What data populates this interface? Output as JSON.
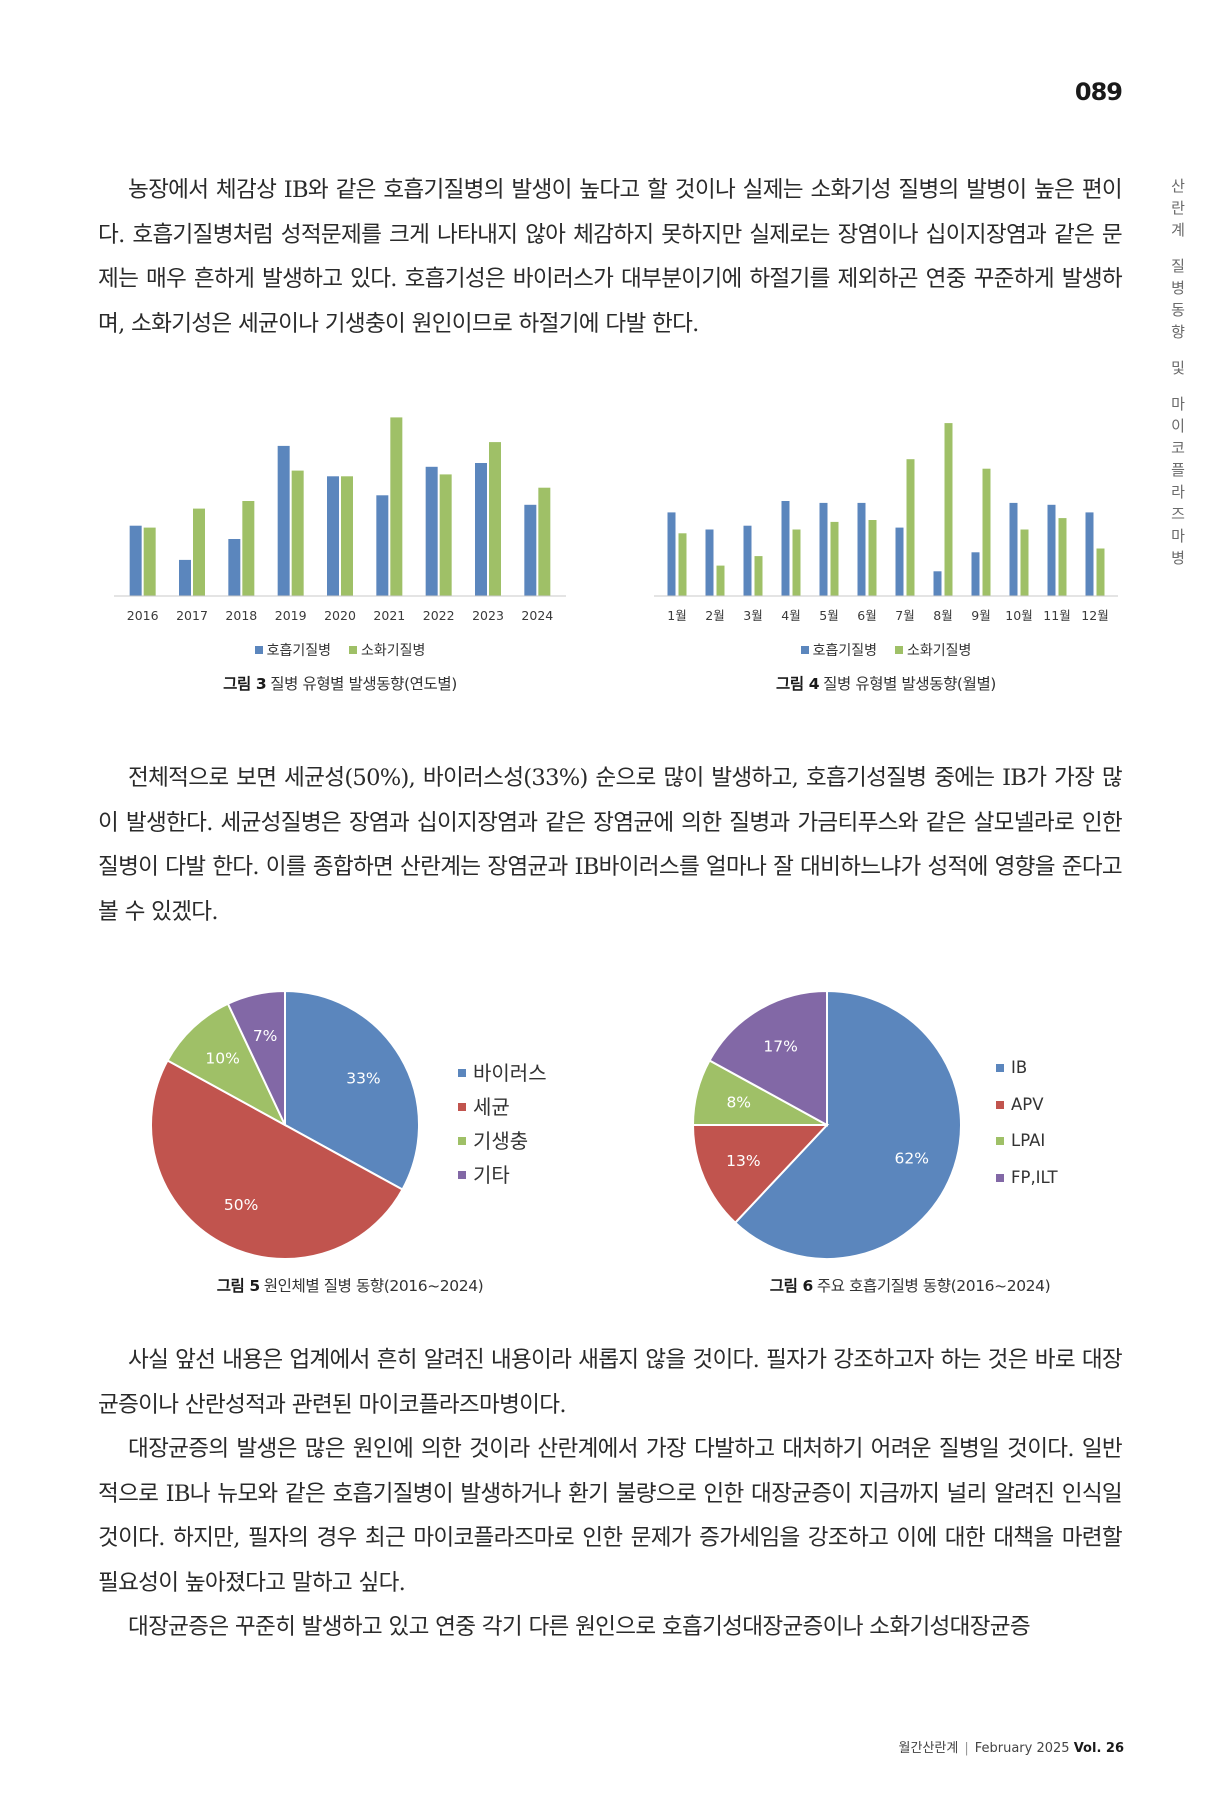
{
  "page_number": "089",
  "side_title": [
    "산",
    "란",
    "계",
    "",
    "질",
    "병",
    "동",
    "향",
    "",
    "및",
    "",
    "마",
    "이",
    "코",
    "플",
    "라",
    "즈",
    "마",
    "병"
  ],
  "paragraphs": {
    "p1": "농장에서 체감상 IB와 같은 호흡기질병의 발생이 높다고 할 것이나 실제는 소화기성 질병의 발병이 높은 편이다. 호흡기질병처럼 성적문제를 크게 나타내지 않아 체감하지 못하지만 실제로는 장염이나 십이지장염과 같은 문제는 매우 흔하게 발생하고 있다. 호흡기성은 바이러스가 대부분이기에 하절기를 제외하곤 연중 꾸준하게 발생하며, 소화기성은 세균이나 기생충이 원인이므로 하절기에 다발 한다.",
    "p2": "전체적으로 보면 세균성(50%), 바이러스성(33%) 순으로 많이 발생하고, 호흡기성질병 중에는 IB가 가장 많이 발생한다. 세균성질병은 장염과 십이지장염과 같은 장염균에 의한 질병과 가금티푸스와 같은 살모넬라로 인한 질병이 다발 한다. 이를 종합하면 산란계는 장염균과 IB바이러스를 얼마나 잘 대비하느냐가 성적에 영향을 준다고 볼 수 있겠다.",
    "p3": "사실 앞선 내용은 업계에서 흔히 알려진 내용이라 새롭지 않을 것이다. 필자가 강조하고자 하는 것은 바로 대장균증이나 산란성적과 관련된 마이코플라즈마병이다.",
    "p4": "대장균증의 발생은 많은 원인에 의한 것이라 산란계에서 가장 다발하고 대처하기 어려운 질병일 것이다. 일반적으로 IB나 뉴모와 같은 호흡기질병이 발생하거나 환기 불량으로 인한 대장균증이 지금까지 널리 알려진 인식일 것이다. 하지만, 필자의 경우 최근 마이코플라즈마로 인한 문제가 증가세임을 강조하고 이에 대한 대책을 마련할 필요성이 높아졌다고 말하고 싶다.",
    "p5": "대장균증은 꾸준히 발생하고 있고 연중 각기 다른 원인으로 호흡기성대장균증이나 소화기성대장균증"
  },
  "captions": {
    "fig3": {
      "num": "그림 3",
      "text": "질병 유형별 발생동향(연도별)"
    },
    "fig4": {
      "num": "그림 4",
      "text": "질병 유형별 발생동향(월별)"
    },
    "fig5": {
      "num": "그림 5",
      "text": "원인체별 질병 동향(2016~2024)"
    },
    "fig6": {
      "num": "그림 6",
      "text": "주요 호흡기질병 동향(2016~2024)"
    }
  },
  "footer": {
    "magazine": "월간산란계",
    "issue": "February 2025",
    "vol": "Vol. 26"
  },
  "colors": {
    "blue": "#5b86bd",
    "green": "#9fc067",
    "red": "#c1544e",
    "purple": "#8268a6"
  },
  "chart_data": [
    {
      "type": "bar",
      "categories": [
        "2016",
        "2017",
        "2018",
        "2019",
        "2020",
        "2021",
        "2022",
        "2023",
        "2024"
      ],
      "series": [
        {
          "name": "호흡기질병",
          "values": [
            37,
            19,
            30,
            79,
            63,
            53,
            68,
            70,
            48
          ]
        },
        {
          "name": "소화기질병",
          "values": [
            36,
            46,
            50,
            66,
            63,
            94,
            64,
            81,
            57
          ]
        }
      ],
      "ylim": [
        0,
        100
      ],
      "grid": false,
      "legend": "bottom"
    },
    {
      "type": "bar",
      "categories": [
        "1월",
        "2월",
        "3월",
        "4월",
        "5월",
        "6월",
        "7월",
        "8월",
        "9월",
        "10월",
        "11월",
        "12월"
      ],
      "series": [
        {
          "name": "호흡기질병",
          "values": [
            44,
            35,
            37,
            50,
            49,
            49,
            36,
            13,
            23,
            49,
            48,
            44
          ]
        },
        {
          "name": "소화기질병",
          "values": [
            33,
            16,
            21,
            35,
            39,
            40,
            72,
            91,
            67,
            35,
            41,
            25
          ]
        }
      ],
      "ylim": [
        0,
        100
      ],
      "grid": false,
      "legend": "bottom"
    },
    {
      "type": "pie",
      "labels": [
        "바이러스",
        "세균",
        "기생충",
        "기타"
      ],
      "values": [
        33,
        50,
        10,
        7
      ],
      "data_labels": [
        "33%",
        "50%",
        "10%",
        "7%"
      ],
      "colors": [
        "#5b86bd",
        "#c1544e",
        "#9fc067",
        "#8268a6"
      ],
      "legend": "right"
    },
    {
      "type": "pie",
      "labels": [
        "IB",
        "APV",
        "LPAI",
        "FP,ILT"
      ],
      "values": [
        62,
        13,
        8,
        17
      ],
      "data_labels": [
        "62%",
        "13%",
        "8%",
        "17%"
      ],
      "colors": [
        "#5b86bd",
        "#c1544e",
        "#9fc067",
        "#8268a6"
      ],
      "legend": "right"
    }
  ]
}
